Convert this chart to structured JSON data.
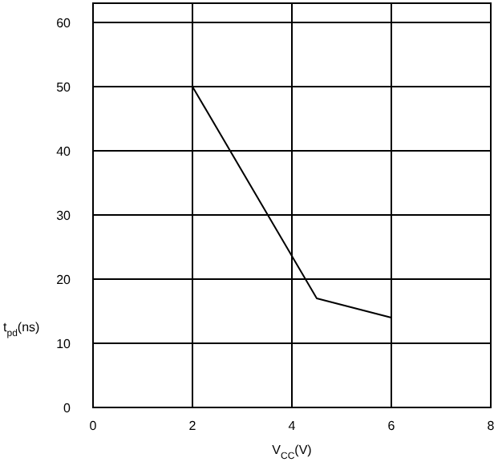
{
  "chart_data": {
    "type": "line",
    "xlabel": "V$_{CC}$(V)",
    "ylabel": "t$_{pd}$(ns)",
    "x": [
      2,
      4.5,
      6
    ],
    "series": [
      {
        "color": "#000000",
        "values": [
          50,
          17,
          14
        ]
      }
    ],
    "xlim": [
      0,
      8
    ],
    "xticks": [
      0,
      2,
      4,
      6,
      8
    ],
    "ylim": [
      0,
      63
    ],
    "yticks": [
      0,
      10,
      20,
      30,
      40,
      50,
      60
    ],
    "grid": true,
    "marker": "none",
    "line_style": "solid"
  }
}
